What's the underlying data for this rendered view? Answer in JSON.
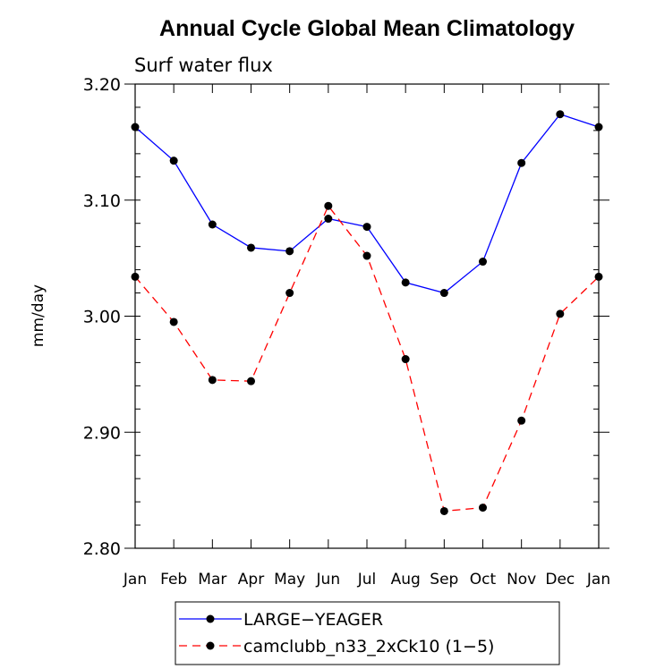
{
  "chart_data": {
    "type": "line",
    "title": "Annual Cycle Global Mean Climatology",
    "subtitle": "Surf water flux",
    "xlabel": "",
    "ylabel": "mm/day",
    "categories": [
      "Jan",
      "Feb",
      "Mar",
      "Apr",
      "May",
      "Jun",
      "Jul",
      "Aug",
      "Sep",
      "Oct",
      "Nov",
      "Dec",
      "Jan"
    ],
    "ylim": [
      2.8,
      3.2
    ],
    "yticks": [
      2.8,
      2.9,
      3.0,
      3.1,
      3.2
    ],
    "ytick_labels": [
      "2.80",
      "2.90",
      "3.00",
      "3.10",
      "3.20"
    ],
    "grid": false,
    "legend_position": "bottom",
    "series": [
      {
        "name": "LARGE−YEAGER",
        "color": "#0000ff",
        "dash": "solid",
        "values": [
          3.163,
          3.134,
          3.079,
          3.059,
          3.056,
          3.084,
          3.077,
          3.029,
          3.02,
          3.047,
          3.132,
          3.174,
          3.163
        ]
      },
      {
        "name": "camclubb_n33_2xCk10 (1−5)",
        "color": "#ff0000",
        "dash": "dashed",
        "values": [
          3.034,
          2.995,
          2.945,
          2.944,
          3.02,
          3.095,
          3.052,
          2.963,
          2.832,
          2.835,
          2.91,
          3.002,
          3.034
        ]
      }
    ]
  }
}
